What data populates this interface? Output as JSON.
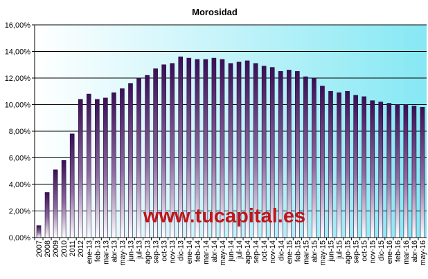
{
  "chart_data": {
    "type": "bar",
    "title": "Morosidad",
    "xlabel": "",
    "ylabel": "",
    "ylim": [
      0,
      16
    ],
    "y_ticks": [
      0,
      2,
      4,
      6,
      8,
      10,
      12,
      14,
      16
    ],
    "y_tick_labels": [
      "0,00%",
      "2,00%",
      "4,00%",
      "6,00%",
      "8,00%",
      "10,00%",
      "12,00%",
      "14,00%",
      "16,00%"
    ],
    "grid": true,
    "legend": "none",
    "categories": [
      "2007",
      "2008",
      "2009",
      "2010",
      "2011",
      "2012",
      "ene-13",
      "feb-13",
      "mar-13",
      "abr-13",
      "may-13",
      "jun-13",
      "jul-13",
      "ago-13",
      "sep-13",
      "oct-13",
      "nov-13",
      "dic-13",
      "ene-14",
      "feb-14",
      "mar-14",
      "abr-14",
      "may-14",
      "jun-14",
      "jul-14",
      "ago-14",
      "sep-14",
      "oct-14",
      "nov-14",
      "dic-14",
      "ene-15",
      "feb-15",
      "mar-15",
      "abr-15",
      "may-15",
      "jun-15",
      "jul-15",
      "ago-15",
      "sep-15",
      "oct-15",
      "nov-15",
      "dic-15",
      "ene-16",
      "feb-16",
      "mar-16",
      "abr-16",
      "may-16"
    ],
    "values": [
      0.9,
      3.4,
      5.1,
      5.8,
      7.8,
      10.4,
      10.8,
      10.4,
      10.5,
      10.9,
      11.2,
      11.6,
      12.0,
      12.2,
      12.7,
      13.0,
      13.1,
      13.6,
      13.5,
      13.4,
      13.4,
      13.5,
      13.4,
      13.1,
      13.2,
      13.3,
      13.1,
      12.9,
      12.8,
      12.5,
      12.6,
      12.5,
      12.1,
      12.0,
      11.4,
      11.0,
      10.9,
      11.0,
      10.7,
      10.6,
      10.3,
      10.2,
      10.1,
      10.0,
      10.0,
      9.9,
      9.8
    ],
    "colors": {
      "bar_top": "#3a0f55",
      "bar_bottom": "#ffffff",
      "bar_stroke": "#2a0a3e",
      "plot_bg_left": "#ffffff",
      "plot_bg_right": "#86e8f4",
      "gridline": "#000000",
      "watermark": "#c0161b"
    },
    "watermark": "www.tucapital.es"
  }
}
